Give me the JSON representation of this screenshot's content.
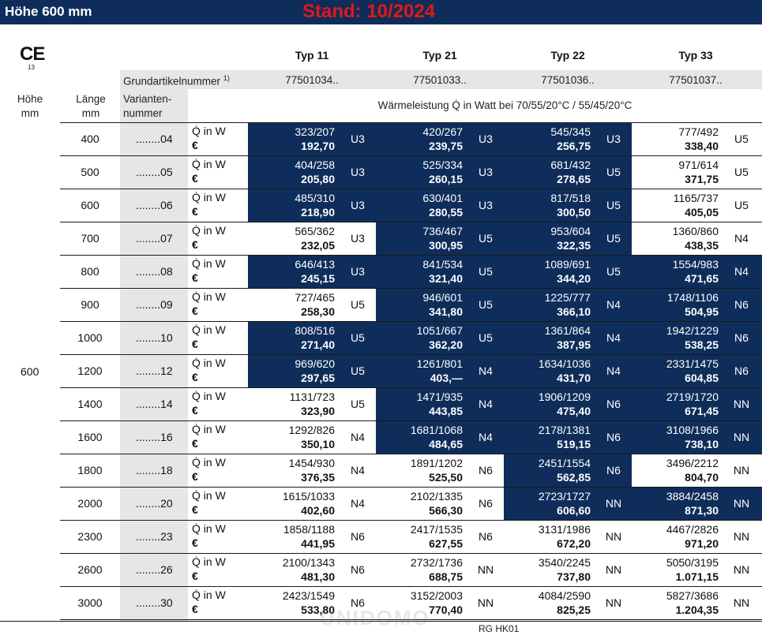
{
  "header": {
    "title": "Höhe 600 mm",
    "stand": "Stand: 10/2024",
    "ce_mark": "CE",
    "ce_number": "13"
  },
  "columns": {
    "types": [
      "Typ 11",
      "Typ 21",
      "Typ 22",
      "Typ 33"
    ],
    "grund_label": "Grundartikelnummer",
    "grund_footnote": "1)",
    "grund_numbers": [
      "77501034..",
      "77501033..",
      "77501036..",
      "77501037.."
    ],
    "hoehe_label": "Höhe",
    "hoehe_unit": "mm",
    "laenge_label": "Länge",
    "laenge_unit": "mm",
    "variant_label_1": "Varianten-",
    "variant_label_2": "nummer",
    "waerme_label": "Wärmeleistung Q̇ in Watt bei 70/55/20°C / 55/45/20°C",
    "q_label": "Q̇ in W",
    "euro_label": "€"
  },
  "hoehe_value": "600",
  "rows": [
    {
      "laenge": "400",
      "variant": "........04",
      "cells": [
        {
          "q": "323/207",
          "price": "192,70",
          "cls": "U3",
          "blue": true
        },
        {
          "q": "420/267",
          "price": "239,75",
          "cls": "U3",
          "blue": true
        },
        {
          "q": "545/345",
          "price": "256,75",
          "cls": "U3",
          "blue": true
        },
        {
          "q": "777/492",
          "price": "338,40",
          "cls": "U5",
          "blue": false
        }
      ]
    },
    {
      "laenge": "500",
      "variant": "........05",
      "cells": [
        {
          "q": "404/258",
          "price": "205,80",
          "cls": "U3",
          "blue": true
        },
        {
          "q": "525/334",
          "price": "260,15",
          "cls": "U3",
          "blue": true
        },
        {
          "q": "681/432",
          "price": "278,65",
          "cls": "U5",
          "blue": true
        },
        {
          "q": "971/614",
          "price": "371,75",
          "cls": "U5",
          "blue": false
        }
      ]
    },
    {
      "laenge": "600",
      "variant": "........06",
      "cells": [
        {
          "q": "485/310",
          "price": "218,90",
          "cls": "U3",
          "blue": true
        },
        {
          "q": "630/401",
          "price": "280,55",
          "cls": "U3",
          "blue": true
        },
        {
          "q": "817/518",
          "price": "300,50",
          "cls": "U5",
          "blue": true
        },
        {
          "q": "1165/737",
          "price": "405,05",
          "cls": "U5",
          "blue": false
        }
      ]
    },
    {
      "laenge": "700",
      "variant": "........07",
      "cells": [
        {
          "q": "565/362",
          "price": "232,05",
          "cls": "U3",
          "blue": false
        },
        {
          "q": "736/467",
          "price": "300,95",
          "cls": "U5",
          "blue": true
        },
        {
          "q": "953/604",
          "price": "322,35",
          "cls": "U5",
          "blue": true
        },
        {
          "q": "1360/860",
          "price": "438,35",
          "cls": "N4",
          "blue": false
        }
      ]
    },
    {
      "laenge": "800",
      "variant": "........08",
      "cells": [
        {
          "q": "646/413",
          "price": "245,15",
          "cls": "U3",
          "blue": true
        },
        {
          "q": "841/534",
          "price": "321,40",
          "cls": "U5",
          "blue": true
        },
        {
          "q": "1089/691",
          "price": "344,20",
          "cls": "U5",
          "blue": true
        },
        {
          "q": "1554/983",
          "price": "471,65",
          "cls": "N4",
          "blue": true
        }
      ]
    },
    {
      "laenge": "900",
      "variant": "........09",
      "cells": [
        {
          "q": "727/465",
          "price": "258,30",
          "cls": "U5",
          "blue": false
        },
        {
          "q": "946/601",
          "price": "341,80",
          "cls": "U5",
          "blue": true
        },
        {
          "q": "1225/777",
          "price": "366,10",
          "cls": "N4",
          "blue": true
        },
        {
          "q": "1748/1106",
          "price": "504,95",
          "cls": "N6",
          "blue": true
        }
      ]
    },
    {
      "laenge": "1000",
      "variant": "........10",
      "cells": [
        {
          "q": "808/516",
          "price": "271,40",
          "cls": "U5",
          "blue": true
        },
        {
          "q": "1051/667",
          "price": "362,20",
          "cls": "U5",
          "blue": true
        },
        {
          "q": "1361/864",
          "price": "387,95",
          "cls": "N4",
          "blue": true
        },
        {
          "q": "1942/1229",
          "price": "538,25",
          "cls": "N6",
          "blue": true
        }
      ]
    },
    {
      "laenge": "1200",
      "variant": "........12",
      "cells": [
        {
          "q": "969/620",
          "price": "297,65",
          "cls": "U5",
          "blue": true
        },
        {
          "q": "1261/801",
          "price": "403,—",
          "cls": "N4",
          "blue": true
        },
        {
          "q": "1634/1036",
          "price": "431,70",
          "cls": "N4",
          "blue": true
        },
        {
          "q": "2331/1475",
          "price": "604,85",
          "cls": "N6",
          "blue": true
        }
      ]
    },
    {
      "laenge": "1400",
      "variant": "........14",
      "cells": [
        {
          "q": "1131/723",
          "price": "323,90",
          "cls": "U5",
          "blue": false
        },
        {
          "q": "1471/935",
          "price": "443,85",
          "cls": "N4",
          "blue": true
        },
        {
          "q": "1906/1209",
          "price": "475,40",
          "cls": "N6",
          "blue": true
        },
        {
          "q": "2719/1720",
          "price": "671,45",
          "cls": "NN",
          "blue": true
        }
      ]
    },
    {
      "laenge": "1600",
      "variant": "........16",
      "cells": [
        {
          "q": "1292/826",
          "price": "350,10",
          "cls": "N4",
          "blue": false
        },
        {
          "q": "1681/1068",
          "price": "484,65",
          "cls": "N4",
          "blue": true
        },
        {
          "q": "2178/1381",
          "price": "519,15",
          "cls": "N6",
          "blue": true
        },
        {
          "q": "3108/1966",
          "price": "738,10",
          "cls": "NN",
          "blue": true
        }
      ]
    },
    {
      "laenge": "1800",
      "variant": "........18",
      "cells": [
        {
          "q": "1454/930",
          "price": "376,35",
          "cls": "N4",
          "blue": false
        },
        {
          "q": "1891/1202",
          "price": "525,50",
          "cls": "N6",
          "blue": false
        },
        {
          "q": "2451/1554",
          "price": "562,85",
          "cls": "N6",
          "blue": true
        },
        {
          "q": "3496/2212",
          "price": "804,70",
          "cls": "NN",
          "blue": false
        }
      ]
    },
    {
      "laenge": "2000",
      "variant": "........20",
      "cells": [
        {
          "q": "1615/1033",
          "price": "402,60",
          "cls": "N4",
          "blue": false
        },
        {
          "q": "2102/1335",
          "price": "566,30",
          "cls": "N6",
          "blue": false
        },
        {
          "q": "2723/1727",
          "price": "606,60",
          "cls": "NN",
          "blue": true
        },
        {
          "q": "3884/2458",
          "price": "871,30",
          "cls": "NN",
          "blue": true
        }
      ]
    },
    {
      "laenge": "2300",
      "variant": "........23",
      "cells": [
        {
          "q": "1858/1188",
          "price": "441,95",
          "cls": "N6",
          "blue": false
        },
        {
          "q": "2417/1535",
          "price": "627,55",
          "cls": "N6",
          "blue": false
        },
        {
          "q": "3131/1986",
          "price": "672,20",
          "cls": "NN",
          "blue": false
        },
        {
          "q": "4467/2826",
          "price": "971,20",
          "cls": "NN",
          "blue": false
        }
      ]
    },
    {
      "laenge": "2600",
      "variant": "........26",
      "cells": [
        {
          "q": "2100/1343",
          "price": "481,30",
          "cls": "N6",
          "blue": false
        },
        {
          "q": "2732/1736",
          "price": "688,75",
          "cls": "NN",
          "blue": false
        },
        {
          "q": "3540/2245",
          "price": "737,80",
          "cls": "NN",
          "blue": false
        },
        {
          "q": "5050/3195",
          "price": "1.071,15",
          "cls": "NN",
          "blue": false
        }
      ]
    },
    {
      "laenge": "3000",
      "variant": "........30",
      "cells": [
        {
          "q": "2423/1549",
          "price": "533,80",
          "cls": "N6",
          "blue": false
        },
        {
          "q": "3152/2003",
          "price": "770,40",
          "cls": "NN",
          "blue": false
        },
        {
          "q": "4084/2590",
          "price": "825,25",
          "cls": "NN",
          "blue": false
        },
        {
          "q": "5827/3686",
          "price": "1.204,35",
          "cls": "NN",
          "blue": false
        }
      ]
    }
  ],
  "watermark": "UNIDOMO",
  "footer": "RG HK01"
}
